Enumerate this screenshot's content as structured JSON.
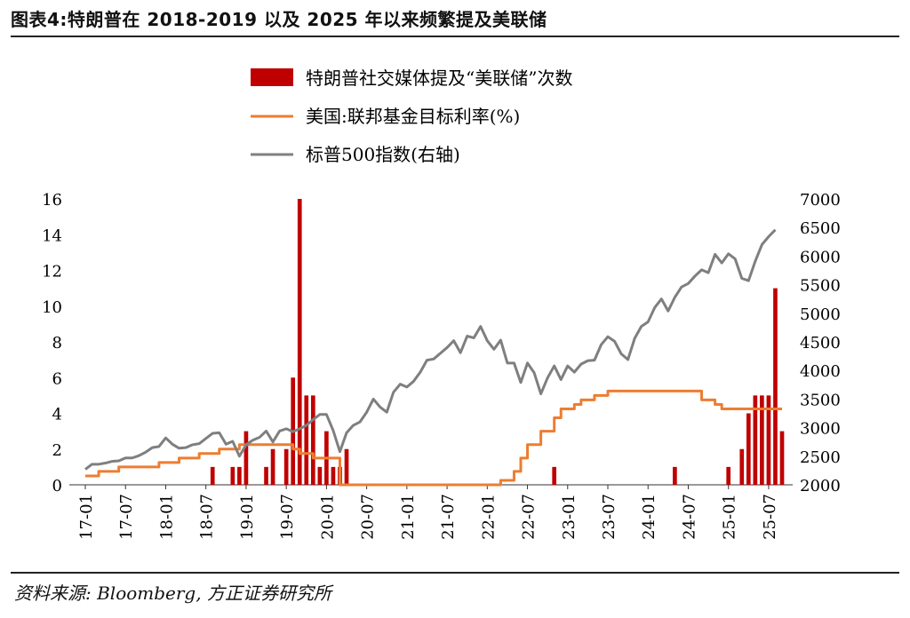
{
  "figure_title": "图表4:特朗普在 2018-2019 以及 2025 年以来频繁提及美联储",
  "source_note": "资料来源: Bloomberg, 方正证券研究所",
  "colors": {
    "bars": "#c00000",
    "fed_rate": "#ed7d31",
    "sp500": "#7f7f7f"
  },
  "chart_data": {
    "type": "bar",
    "title": "",
    "x_tick_labels": [
      "17-01",
      "17-07",
      "18-01",
      "18-07",
      "19-01",
      "19-07",
      "20-01",
      "20-07",
      "21-01",
      "21-07",
      "22-01",
      "22-07",
      "23-01",
      "23-07",
      "24-01",
      "24-07",
      "25-01",
      "25-07"
    ],
    "y_left": {
      "label": "",
      "range": [
        0,
        16
      ],
      "ticks": [
        0,
        2,
        4,
        6,
        8,
        10,
        12,
        14,
        16
      ]
    },
    "y_right": {
      "label": "",
      "range": [
        2000,
        7000
      ],
      "ticks": [
        2000,
        2500,
        3000,
        3500,
        4000,
        4500,
        5000,
        5500,
        6000,
        6500,
        7000
      ]
    },
    "months_from": "2017-01",
    "series": [
      {
        "name": "特朗普社交媒体提及“美联储”次数",
        "kind": "bar",
        "axis": "left",
        "points": [
          [
            "18-08",
            1
          ],
          [
            "18-11",
            1
          ],
          [
            "18-12",
            1
          ],
          [
            "19-01",
            3
          ],
          [
            "19-04",
            1
          ],
          [
            "19-05",
            2
          ],
          [
            "19-07",
            2
          ],
          [
            "19-08",
            6
          ],
          [
            "19-09",
            16
          ],
          [
            "19-10",
            5
          ],
          [
            "19-11",
            5
          ],
          [
            "19-12",
            1
          ],
          [
            "20-01",
            3
          ],
          [
            "20-02",
            1
          ],
          [
            "20-03",
            1
          ],
          [
            "20-04",
            2
          ],
          [
            "22-11",
            1
          ],
          [
            "24-05",
            1
          ],
          [
            "25-01",
            1
          ],
          [
            "25-03",
            2
          ],
          [
            "25-04",
            4
          ],
          [
            "25-05",
            5
          ],
          [
            "25-06",
            5
          ],
          [
            "25-07",
            5
          ],
          [
            "25-08",
            11
          ],
          [
            "25-09",
            3
          ]
        ]
      },
      {
        "name": "美国:联邦基金目标利率(%)",
        "kind": "step-line",
        "axis": "left",
        "points": [
          [
            "17-01",
            0.5
          ],
          [
            "17-03",
            0.75
          ],
          [
            "17-06",
            1.0
          ],
          [
            "17-12",
            1.25
          ],
          [
            "18-03",
            1.5
          ],
          [
            "18-06",
            1.75
          ],
          [
            "18-09",
            2.0
          ],
          [
            "18-12",
            2.25
          ],
          [
            "19-08",
            2.0
          ],
          [
            "19-09",
            1.75
          ],
          [
            "19-11",
            1.5
          ],
          [
            "20-03",
            0.0
          ],
          [
            "22-03",
            0.25
          ],
          [
            "22-05",
            0.75
          ],
          [
            "22-06",
            1.5
          ],
          [
            "22-07",
            2.25
          ],
          [
            "22-09",
            3.0
          ],
          [
            "22-11",
            3.75
          ],
          [
            "22-12",
            4.25
          ],
          [
            "23-02",
            4.5
          ],
          [
            "23-03",
            4.75
          ],
          [
            "23-05",
            5.0
          ],
          [
            "23-07",
            5.25
          ],
          [
            "24-09",
            4.75
          ],
          [
            "24-11",
            4.5
          ],
          [
            "24-12",
            4.25
          ],
          [
            "25-09",
            4.25
          ]
        ]
      },
      {
        "name": "标普500指数(右轴)",
        "kind": "line",
        "axis": "right",
        "points": [
          [
            "17-01",
            2270
          ],
          [
            "17-02",
            2360
          ],
          [
            "17-03",
            2360
          ],
          [
            "17-04",
            2380
          ],
          [
            "17-05",
            2410
          ],
          [
            "17-06",
            2420
          ],
          [
            "17-07",
            2470
          ],
          [
            "17-08",
            2470
          ],
          [
            "17-09",
            2510
          ],
          [
            "17-10",
            2570
          ],
          [
            "17-11",
            2650
          ],
          [
            "17-12",
            2670
          ],
          [
            "18-01",
            2820
          ],
          [
            "18-02",
            2710
          ],
          [
            "18-03",
            2640
          ],
          [
            "18-04",
            2650
          ],
          [
            "18-05",
            2700
          ],
          [
            "18-06",
            2720
          ],
          [
            "18-07",
            2810
          ],
          [
            "18-08",
            2900
          ],
          [
            "18-09",
            2910
          ],
          [
            "18-10",
            2710
          ],
          [
            "18-11",
            2760
          ],
          [
            "18-12",
            2500
          ],
          [
            "19-01",
            2700
          ],
          [
            "19-02",
            2780
          ],
          [
            "19-03",
            2830
          ],
          [
            "19-04",
            2940
          ],
          [
            "19-05",
            2750
          ],
          [
            "19-06",
            2940
          ],
          [
            "19-07",
            2980
          ],
          [
            "19-08",
            2930
          ],
          [
            "19-09",
            2980
          ],
          [
            "19-10",
            3040
          ],
          [
            "19-11",
            3140
          ],
          [
            "19-12",
            3230
          ],
          [
            "20-01",
            3230
          ],
          [
            "20-02",
            2950
          ],
          [
            "20-03",
            2580
          ],
          [
            "20-04",
            2910
          ],
          [
            "20-05",
            3040
          ],
          [
            "20-06",
            3100
          ],
          [
            "20-07",
            3270
          ],
          [
            "20-08",
            3500
          ],
          [
            "20-09",
            3360
          ],
          [
            "20-10",
            3270
          ],
          [
            "20-11",
            3620
          ],
          [
            "20-12",
            3760
          ],
          [
            "21-01",
            3710
          ],
          [
            "21-02",
            3810
          ],
          [
            "21-03",
            3970
          ],
          [
            "21-04",
            4180
          ],
          [
            "21-05",
            4200
          ],
          [
            "21-06",
            4300
          ],
          [
            "21-07",
            4400
          ],
          [
            "21-08",
            4520
          ],
          [
            "21-09",
            4310
          ],
          [
            "21-10",
            4600
          ],
          [
            "21-11",
            4570
          ],
          [
            "21-12",
            4770
          ],
          [
            "22-01",
            4520
          ],
          [
            "22-02",
            4370
          ],
          [
            "22-03",
            4530
          ],
          [
            "22-04",
            4130
          ],
          [
            "22-05",
            4130
          ],
          [
            "22-06",
            3790
          ],
          [
            "22-07",
            4130
          ],
          [
            "22-08",
            3960
          ],
          [
            "22-09",
            3590
          ],
          [
            "22-10",
            3870
          ],
          [
            "22-11",
            4080
          ],
          [
            "22-12",
            3840
          ],
          [
            "23-01",
            4080
          ],
          [
            "23-02",
            3970
          ],
          [
            "23-03",
            4110
          ],
          [
            "23-04",
            4170
          ],
          [
            "23-05",
            4180
          ],
          [
            "23-06",
            4450
          ],
          [
            "23-07",
            4590
          ],
          [
            "23-08",
            4510
          ],
          [
            "23-09",
            4290
          ],
          [
            "23-10",
            4190
          ],
          [
            "23-11",
            4560
          ],
          [
            "23-12",
            4770
          ],
          [
            "24-01",
            4850
          ],
          [
            "24-02",
            5100
          ],
          [
            "24-03",
            5250
          ],
          [
            "24-04",
            5040
          ],
          [
            "24-05",
            5280
          ],
          [
            "24-06",
            5460
          ],
          [
            "24-07",
            5520
          ],
          [
            "24-08",
            5650
          ],
          [
            "24-09",
            5760
          ],
          [
            "24-10",
            5710
          ],
          [
            "24-11",
            6030
          ],
          [
            "24-12",
            5880
          ],
          [
            "25-01",
            6040
          ],
          [
            "25-02",
            5950
          ],
          [
            "25-03",
            5610
          ],
          [
            "25-04",
            5570
          ],
          [
            "25-05",
            5910
          ],
          [
            "25-06",
            6200
          ],
          [
            "25-07",
            6340
          ],
          [
            "25-08",
            6460
          ]
        ]
      }
    ],
    "legend": "top-center"
  }
}
